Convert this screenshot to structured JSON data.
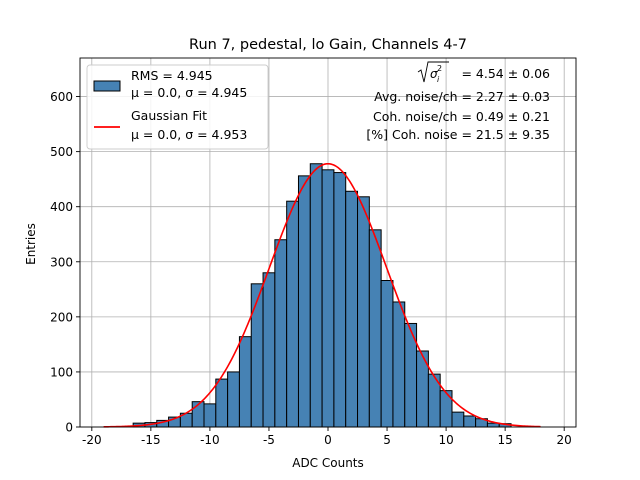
{
  "chart_data": {
    "type": "bar",
    "title": "Run 7, pedestal, lo Gain, Channels 4-7",
    "xlabel": "ADC Counts",
    "ylabel": "Entries",
    "xlim": [
      -21,
      21
    ],
    "ylim": [
      0,
      670
    ],
    "xticks": [
      -20,
      -15,
      -10,
      -5,
      0,
      5,
      10,
      15,
      20
    ],
    "yticks": [
      0,
      100,
      200,
      300,
      400,
      500,
      600
    ],
    "grid": true,
    "bin_width": 1,
    "bins": [
      {
        "x": -16,
        "value": 7
      },
      {
        "x": -15,
        "value": 8
      },
      {
        "x": -14,
        "value": 12
      },
      {
        "x": -13,
        "value": 18
      },
      {
        "x": -12,
        "value": 25
      },
      {
        "x": -11,
        "value": 46
      },
      {
        "x": -10,
        "value": 42
      },
      {
        "x": -9,
        "value": 87
      },
      {
        "x": -8,
        "value": 100
      },
      {
        "x": -7,
        "value": 164
      },
      {
        "x": -6,
        "value": 260
      },
      {
        "x": -5,
        "value": 280
      },
      {
        "x": -4,
        "value": 340
      },
      {
        "x": -3,
        "value": 410
      },
      {
        "x": -2,
        "value": 456
      },
      {
        "x": -1,
        "value": 478
      },
      {
        "x": 0,
        "value": 467
      },
      {
        "x": 1,
        "value": 462
      },
      {
        "x": 2,
        "value": 428
      },
      {
        "x": 3,
        "value": 418
      },
      {
        "x": 4,
        "value": 358
      },
      {
        "x": 5,
        "value": 266
      },
      {
        "x": 6,
        "value": 227
      },
      {
        "x": 7,
        "value": 188
      },
      {
        "x": 8,
        "value": 138
      },
      {
        "x": 9,
        "value": 96
      },
      {
        "x": 10,
        "value": 66
      },
      {
        "x": 11,
        "value": 27
      },
      {
        "x": 12,
        "value": 20
      },
      {
        "x": 13,
        "value": 15
      },
      {
        "x": 14,
        "value": 7
      },
      {
        "x": 15,
        "value": 6
      }
    ],
    "fit": {
      "type": "gaussian",
      "mu": 0.0,
      "sigma": 4.953,
      "amplitude": 478,
      "x_range": [
        -19,
        18
      ]
    },
    "colors": {
      "bar_fill": "#4682b4",
      "bar_edge": "#000000",
      "fit_line": "#ff0000",
      "grid": "#b0b0b0"
    },
    "legend": {
      "placement": "top-left",
      "entries": [
        {
          "line1": "RMS = 4.945",
          "line2": "μ = 0.0, σ = 4.945"
        },
        {
          "line1": "Gaussian Fit",
          "line2": "μ = 0.0, σ = 4.953"
        }
      ]
    },
    "annotations": {
      "placement": "top-right",
      "sigma_total_value": "= 4.54 ± 0.06",
      "avg_noise": "Avg. noise/ch = 2.27 ± 0.03",
      "coh_noise": "Coh. noise/ch = 0.49 ± 0.21",
      "coh_pct": "[%] Coh. noise = 21.5 ± 9.35"
    }
  }
}
